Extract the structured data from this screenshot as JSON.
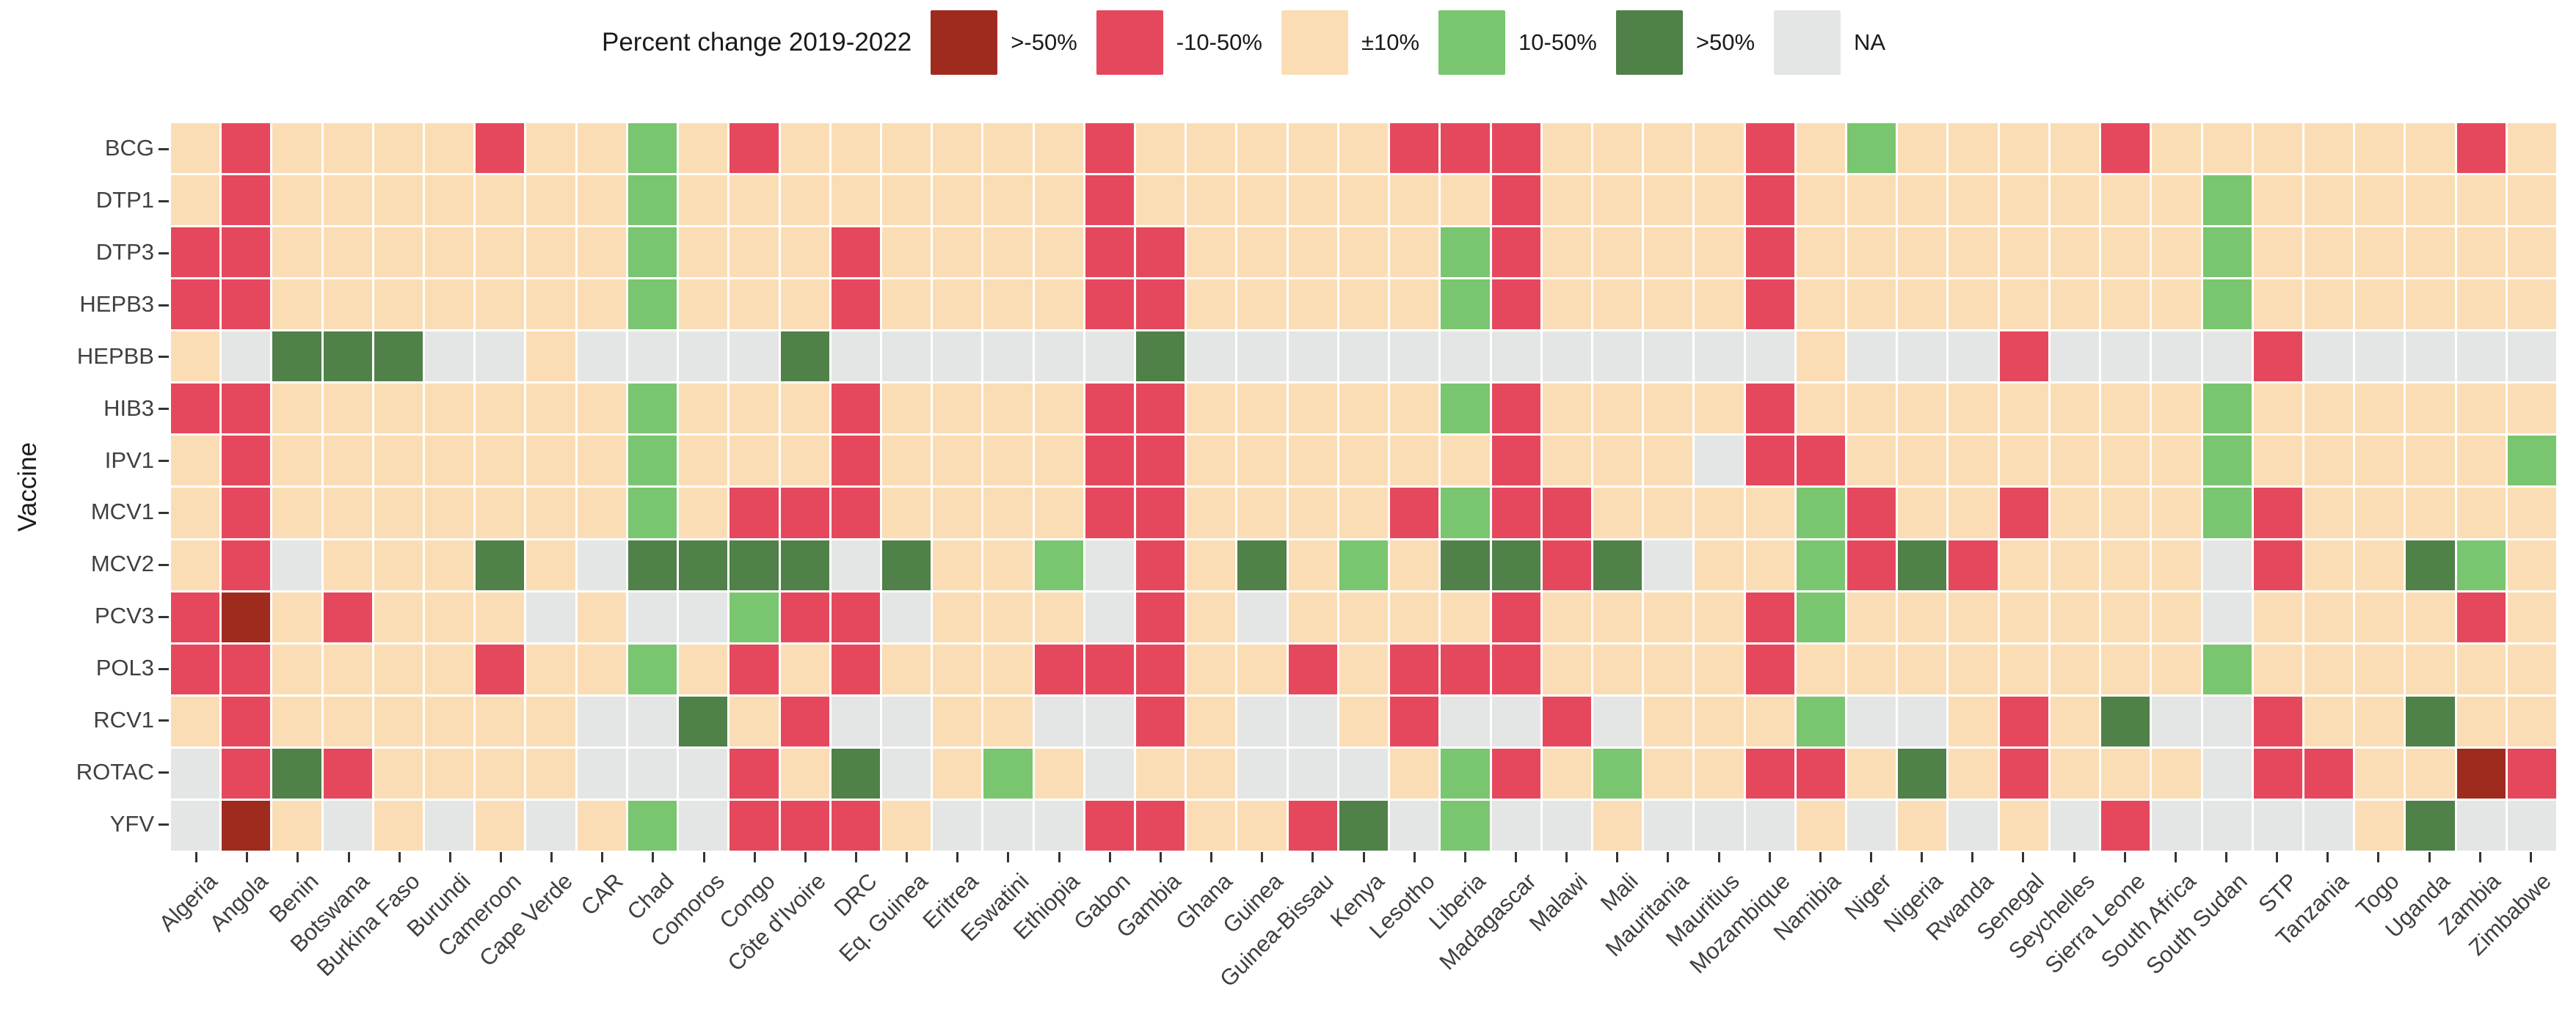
{
  "chart_data": {
    "type": "heatmap",
    "legend_title": "Percent change 2019-2022",
    "ylabel": "Vaccine",
    "legend": [
      {
        "label": ">-50%",
        "code": "D"
      },
      {
        "label": "-10-50%",
        "code": "R"
      },
      {
        "label": "±10%",
        "code": "O"
      },
      {
        "label": "10-50%",
        "code": "G"
      },
      {
        "label": ">50%",
        "code": "E"
      },
      {
        "label": "NA",
        "code": "N"
      }
    ],
    "colors": {
      "D": "#9E2B1E",
      "R": "#E5485C",
      "O": "#FBDDB5",
      "G": "#7AC56F",
      "E": "#4F8149",
      "N": "#E4E6E5"
    },
    "value_meaning": {
      "D": ">-50%",
      "R": "-10-50%",
      "O": "±10%",
      "G": "10-50%",
      "E": ">50%",
      "N": "NA"
    },
    "rows": [
      "BCG",
      "DTP1",
      "DTP3",
      "HEPB3",
      "HEPBB",
      "HIB3",
      "IPV1",
      "MCV1",
      "MCV2",
      "PCV3",
      "POL3",
      "RCV1",
      "ROTAC",
      "YFV"
    ],
    "columns": [
      "Algeria",
      "Angola",
      "Benin",
      "Botswana",
      "Burkina Faso",
      "Burundi",
      "Cameroon",
      "Cape Verde",
      "CAR",
      "Chad",
      "Comoros",
      "Congo",
      "Côte d'Ivoire",
      "DRC",
      "Eq. Guinea",
      "Eritrea",
      "Eswatini",
      "Ethiopia",
      "Gabon",
      "Gambia",
      "Ghana",
      "Guinea",
      "Guinea-Bissau",
      "Kenya",
      "Lesotho",
      "Liberia",
      "Madagascar",
      "Malawi",
      "Mali",
      "Mauritania",
      "Mauritius",
      "Mozambique",
      "Namibia",
      "Niger",
      "Nigeria",
      "Rwanda",
      "Senegal",
      "Seychelles",
      "Sierra Leone",
      "South Africa",
      "South Sudan",
      "STP",
      "Tanzania",
      "Togo",
      "Uganda",
      "Zambia",
      "Zimbabwe"
    ],
    "matrix": [
      "OROOOOROOGOROOOOOOROOOOORRROOOOROGOOOOROOOOOORO",
      "OROOOOOOOGOOOOOOOOROOOOOOOROOOOROOOOOOOOGOOOOOO",
      "RROOOOOOOGOOOROOOORROOOOOGROOOOROOOOOOOOGOOOOOO",
      "RROOOOOOOGOOOROOOORROOOOOGROOOOROOOOOOOOGOOOOOO",
      "ONEEENNONNNNENNNNNNENNNNNNNNNNNNONNNRNNNNRNNNNN",
      "RROOOOOOOGOOOROOOORROOOOOGROOOOROOOOOOOOGOOOOOO",
      "OROOOOOOOGOOOROOOORROOOOOOROOONRROOOOOOOGOOOOOG",
      "OROOOOOOOGORRROOOORROOOORGRROOOOGROOROOOGROOOOO",
      "ORNOOOEONEEEENEOOGNROEOGOEERENOOGREROOOONROOEGO",
      "RDOROOONONNGRRNOOONRONOOOOROOOORGOOOOOOONOOOORO",
      "RROOOOROOGOROROOORRROORORRROOOOROOOOOOOOGOOOOOO",
      "OROOOOOONNEORNNOONNRONNORNNRNOOOGNNOROENNROOEOO",
      "NREROOOONNNROENOGONOONNNOGROGOORROEOROOONRROODR",
      "NDONONONOGNRRRONNNRROORENGNNONNNONONONRNNNNOENN"
    ]
  }
}
